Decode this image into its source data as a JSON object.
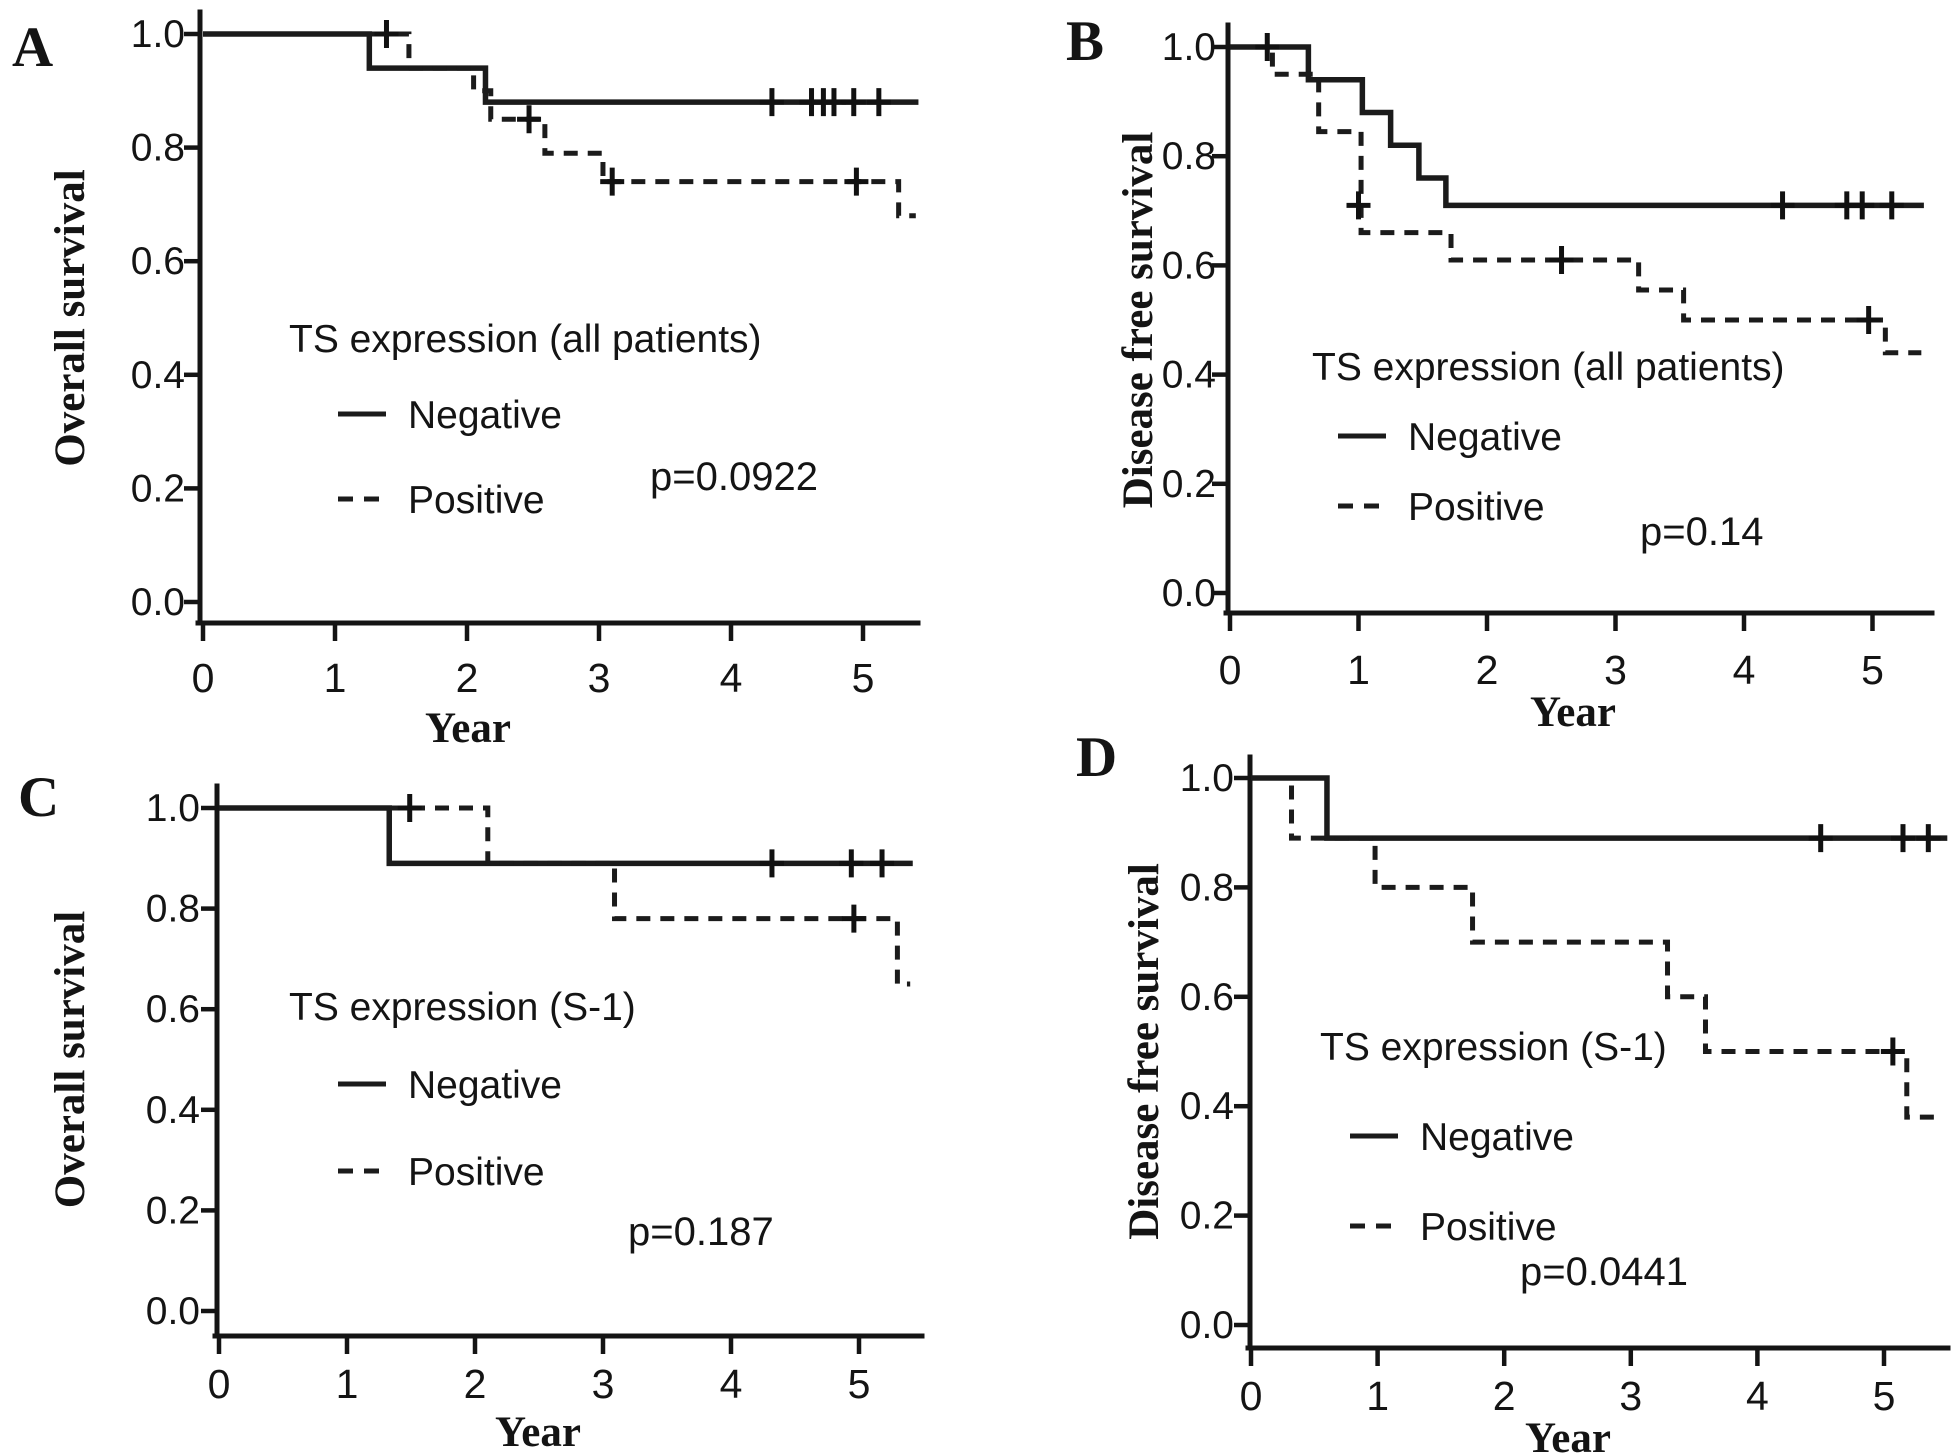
{
  "chart_data": [
    {
      "panel_label": "A",
      "type": "line",
      "subtype": "kaplan-meier-step",
      "xlabel": "Year",
      "ylabel": "Overall survival",
      "legend_title": "TS expression (all patients)",
      "p_label": "p=0.0922",
      "legend_position": "inside-left-middle",
      "grid": false,
      "xlim": [
        0,
        5.45
      ],
      "ylim": [
        0.0,
        1.0
      ],
      "xticks": [
        0,
        1,
        2,
        3,
        4,
        5
      ],
      "yticks": [
        {
          "label": "1.0",
          "v": 1.0
        },
        {
          "label": "0.8",
          "v": 0.8
        },
        {
          "label": "0.6",
          "v": 0.6
        },
        {
          "label": "0.4",
          "v": 0.4
        },
        {
          "label": "0.2",
          "v": 0.2
        },
        {
          "label": "0.0",
          "v": 0.0
        }
      ],
      "series": [
        {
          "name": "Negative",
          "style": "solid",
          "steps": [
            [
              0,
              1.0
            ],
            [
              1.26,
              0.94
            ],
            [
              2.14,
              0.88
            ]
          ],
          "end": 5.42,
          "censors": [
            [
              4.31,
              0.88
            ],
            [
              4.61,
              0.88
            ],
            [
              4.7,
              0.88
            ],
            [
              4.78,
              0.88
            ],
            [
              4.93,
              0.88
            ],
            [
              5.12,
              0.88
            ]
          ]
        },
        {
          "name": "Positive",
          "style": "dashed",
          "steps": [
            [
              0,
              1.0
            ],
            [
              1.56,
              0.94
            ],
            [
              2.05,
              0.9
            ],
            [
              2.18,
              0.85
            ],
            [
              2.59,
              0.79
            ],
            [
              3.03,
              0.74
            ],
            [
              5.27,
              0.68
            ]
          ],
          "end": 5.4,
          "censors": [
            [
              1.39,
              1.0
            ],
            [
              2.47,
              0.85
            ],
            [
              3.1,
              0.74
            ],
            [
              4.95,
              0.74
            ]
          ]
        }
      ]
    },
    {
      "panel_label": "B",
      "type": "line",
      "subtype": "kaplan-meier-step",
      "xlabel": "Year",
      "ylabel": "Disease free survival",
      "legend_title": "TS expression (all patients)",
      "p_label": "p=0.14",
      "legend_position": "inside-left-lower",
      "grid": false,
      "xlim": [
        0,
        5.45
      ],
      "ylim": [
        0.0,
        1.0
      ],
      "xticks": [
        0,
        1,
        2,
        3,
        4,
        5
      ],
      "yticks": [
        {
          "label": "1.0",
          "v": 1.0
        },
        {
          "label": "0.8",
          "v": 0.8
        },
        {
          "label": "0.6",
          "v": 0.6
        },
        {
          "label": "0.4",
          "v": 0.4
        },
        {
          "label": "0.2",
          "v": 0.2
        },
        {
          "label": "0.0",
          "v": 0.0
        }
      ],
      "series": [
        {
          "name": "Negative",
          "style": "solid",
          "steps": [
            [
              0,
              1.0
            ],
            [
              0.61,
              0.94
            ],
            [
              1.03,
              0.88
            ],
            [
              1.25,
              0.82
            ],
            [
              1.47,
              0.76
            ],
            [
              1.68,
              0.71
            ]
          ],
          "end": 5.4,
          "censors": [
            [
              4.3,
              0.71
            ],
            [
              4.8,
              0.71
            ],
            [
              4.92,
              0.71
            ],
            [
              5.15,
              0.71
            ]
          ]
        },
        {
          "name": "Positive",
          "style": "dashed",
          "steps": [
            [
              0,
              1.0
            ],
            [
              0.33,
              0.95
            ],
            [
              0.69,
              0.845
            ],
            [
              1.02,
              0.66
            ],
            [
              1.72,
              0.61
            ],
            [
              3.18,
              0.555
            ],
            [
              3.53,
              0.5
            ],
            [
              5.1,
              0.44
            ]
          ],
          "end": 5.38,
          "censors": [
            [
              0.29,
              1.0
            ],
            [
              1.0,
              0.71
            ],
            [
              2.58,
              0.61
            ],
            [
              4.97,
              0.5
            ]
          ]
        }
      ]
    },
    {
      "panel_label": "C",
      "type": "line",
      "subtype": "kaplan-meier-step",
      "xlabel": "Year",
      "ylabel": "Overall survival",
      "legend_title": "TS expression (S-1)",
      "p_label": "p=0.187",
      "legend_position": "inside-left-middle",
      "grid": false,
      "xlim": [
        0,
        5.45
      ],
      "ylim": [
        0.0,
        1.0
      ],
      "xticks": [
        0,
        1,
        2,
        3,
        4,
        5
      ],
      "yticks": [
        {
          "label": "1.0",
          "v": 1.0
        },
        {
          "label": "0.8",
          "v": 0.8
        },
        {
          "label": "0.6",
          "v": 0.6
        },
        {
          "label": "0.4",
          "v": 0.4
        },
        {
          "label": "0.2",
          "v": 0.2
        },
        {
          "label": "0.0",
          "v": 0.0
        }
      ],
      "series": [
        {
          "name": "Negative",
          "style": "solid",
          "steps": [
            [
              0,
              1.0
            ],
            [
              1.33,
              0.89
            ]
          ],
          "end": 5.42,
          "censors": [
            [
              4.32,
              0.89
            ],
            [
              4.94,
              0.89
            ],
            [
              5.18,
              0.89
            ]
          ]
        },
        {
          "name": "Positive",
          "style": "dashed",
          "steps": [
            [
              0,
              1.0
            ],
            [
              2.1,
              0.89
            ],
            [
              3.09,
              0.78
            ],
            [
              5.3,
              0.65
            ]
          ],
          "end": 5.4,
          "censors": [
            [
              1.49,
              1.0
            ],
            [
              4.96,
              0.78
            ]
          ]
        }
      ]
    },
    {
      "panel_label": "D",
      "type": "line",
      "subtype": "kaplan-meier-step",
      "xlabel": "Year",
      "ylabel": "Disease free survival",
      "legend_title": "TS expression (S-1)",
      "p_label": "p=0.0441",
      "legend_position": "inside-left-lower",
      "grid": false,
      "xlim": [
        0,
        5.5
      ],
      "ylim": [
        0.0,
        1.0
      ],
      "xticks": [
        0,
        1,
        2,
        3,
        4,
        5
      ],
      "yticks": [
        {
          "label": "1.0",
          "v": 1.0
        },
        {
          "label": "0.8",
          "v": 0.8
        },
        {
          "label": "0.6",
          "v": 0.6
        },
        {
          "label": "0.4",
          "v": 0.4
        },
        {
          "label": "0.2",
          "v": 0.2
        },
        {
          "label": "0.0",
          "v": 0.0
        }
      ],
      "series": [
        {
          "name": "Negative",
          "style": "solid",
          "steps": [
            [
              0,
              1.0
            ],
            [
              0.6,
              0.89
            ]
          ],
          "end": 5.5,
          "censors": [
            [
              4.5,
              0.89
            ],
            [
              5.15,
              0.89
            ],
            [
              5.35,
              0.89
            ]
          ]
        },
        {
          "name": "Positive",
          "style": "dashed",
          "steps": [
            [
              0,
              1.0
            ],
            [
              0.32,
              0.89
            ],
            [
              0.98,
              0.8
            ],
            [
              1.75,
              0.7
            ],
            [
              3.29,
              0.6
            ],
            [
              3.59,
              0.5
            ],
            [
              5.18,
              0.38
            ]
          ],
          "end": 5.47,
          "censors": [
            [
              5.07,
              0.5
            ]
          ]
        }
      ]
    }
  ],
  "colors": {
    "ink": "#141414",
    "background": "#ffffff"
  }
}
